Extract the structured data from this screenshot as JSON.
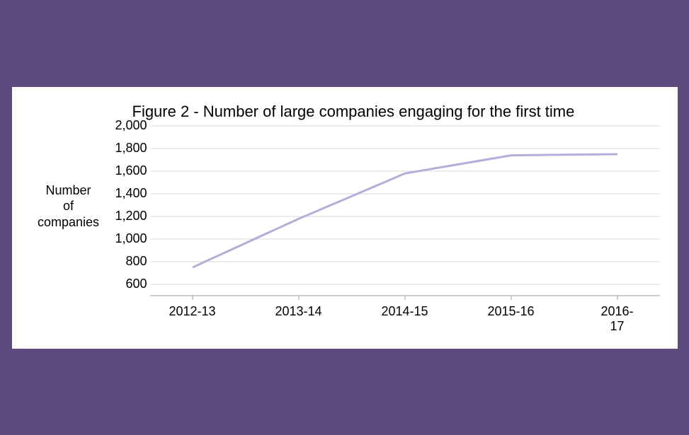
{
  "chart": {
    "type": "line",
    "title": "Figure 2 - Number of large companies engaging for the first time",
    "yaxis_label_lines": [
      "Number",
      "of",
      "companies"
    ],
    "categories": [
      "2012-13",
      "2013-14",
      "2014-15",
      "2015-16",
      "2016-17"
    ],
    "values": [
      750,
      1180,
      1580,
      1740,
      1750
    ],
    "line_color": "#b9abd9",
    "grid_color": "#d9d9d9",
    "axis_color": "#9e9e9e",
    "background_color": "#ffffff",
    "page_background": "#5e4a7d",
    "ylim": [
      500,
      2000
    ],
    "yticks": [
      600,
      800,
      1000,
      1200,
      1400,
      1600,
      1800,
      2000
    ],
    "ytick_labels": [
      "600",
      "800",
      "1,000",
      "1,200",
      "1,400",
      "1,600",
      "1,800",
      "2,000"
    ],
    "title_fontsize": 22,
    "label_fontsize": 18,
    "tick_fontsize": 18,
    "line_width": 3
  }
}
